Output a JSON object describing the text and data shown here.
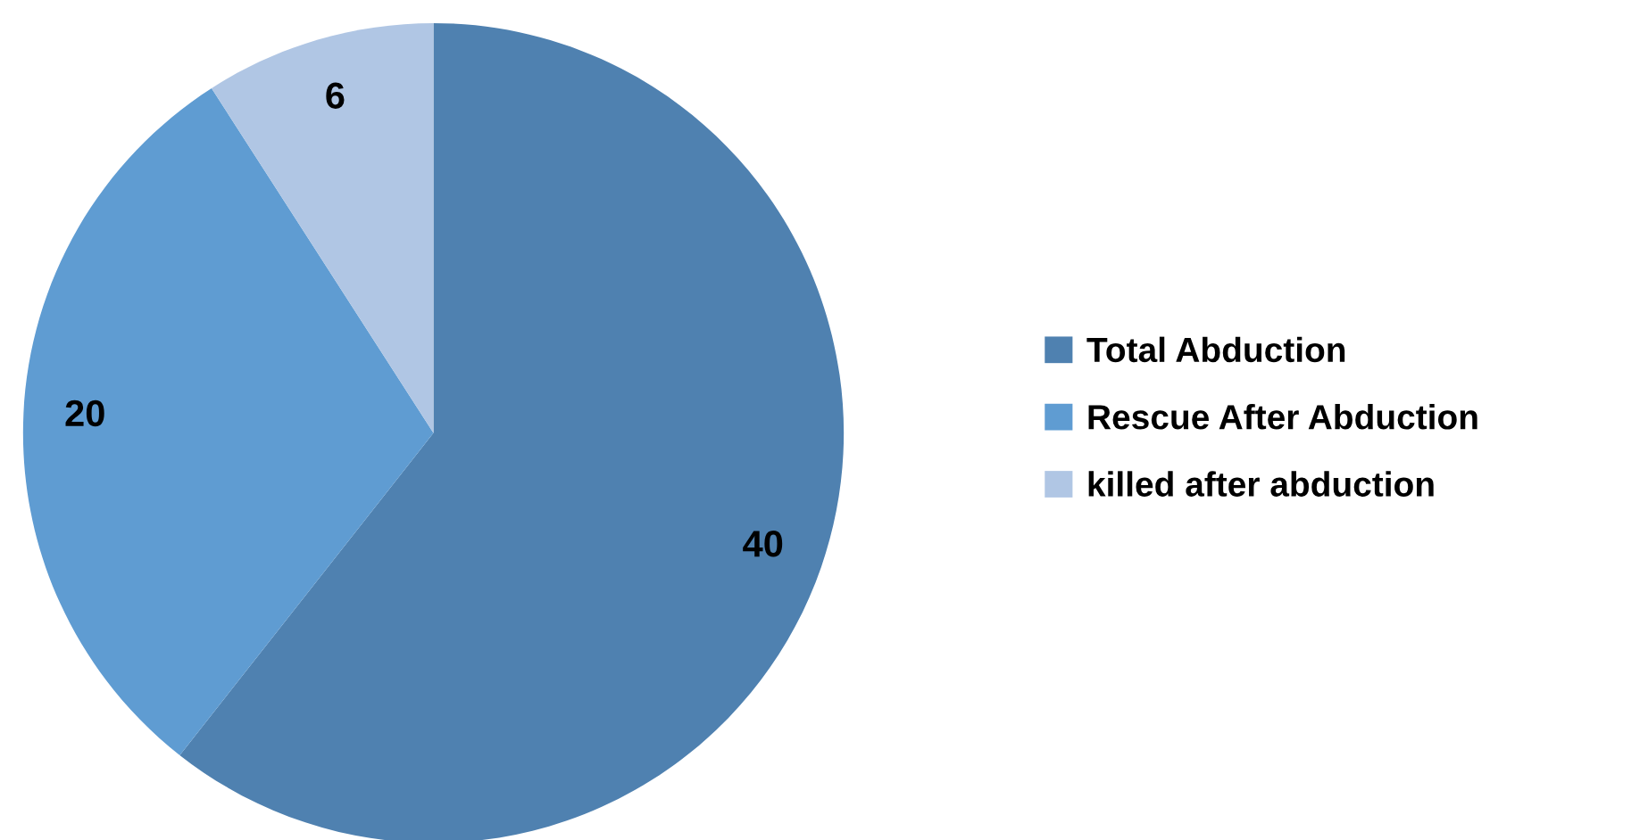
{
  "chart_data": {
    "type": "pie",
    "categories": [
      "Total Abduction",
      "Rescue After Abduction",
      "killed after abduction"
    ],
    "values": [
      40,
      20,
      6
    ],
    "colors": [
      "#4f81b0",
      "#5f9cd2",
      "#b0c6e4"
    ],
    "data_labels": true,
    "legend": "right"
  }
}
